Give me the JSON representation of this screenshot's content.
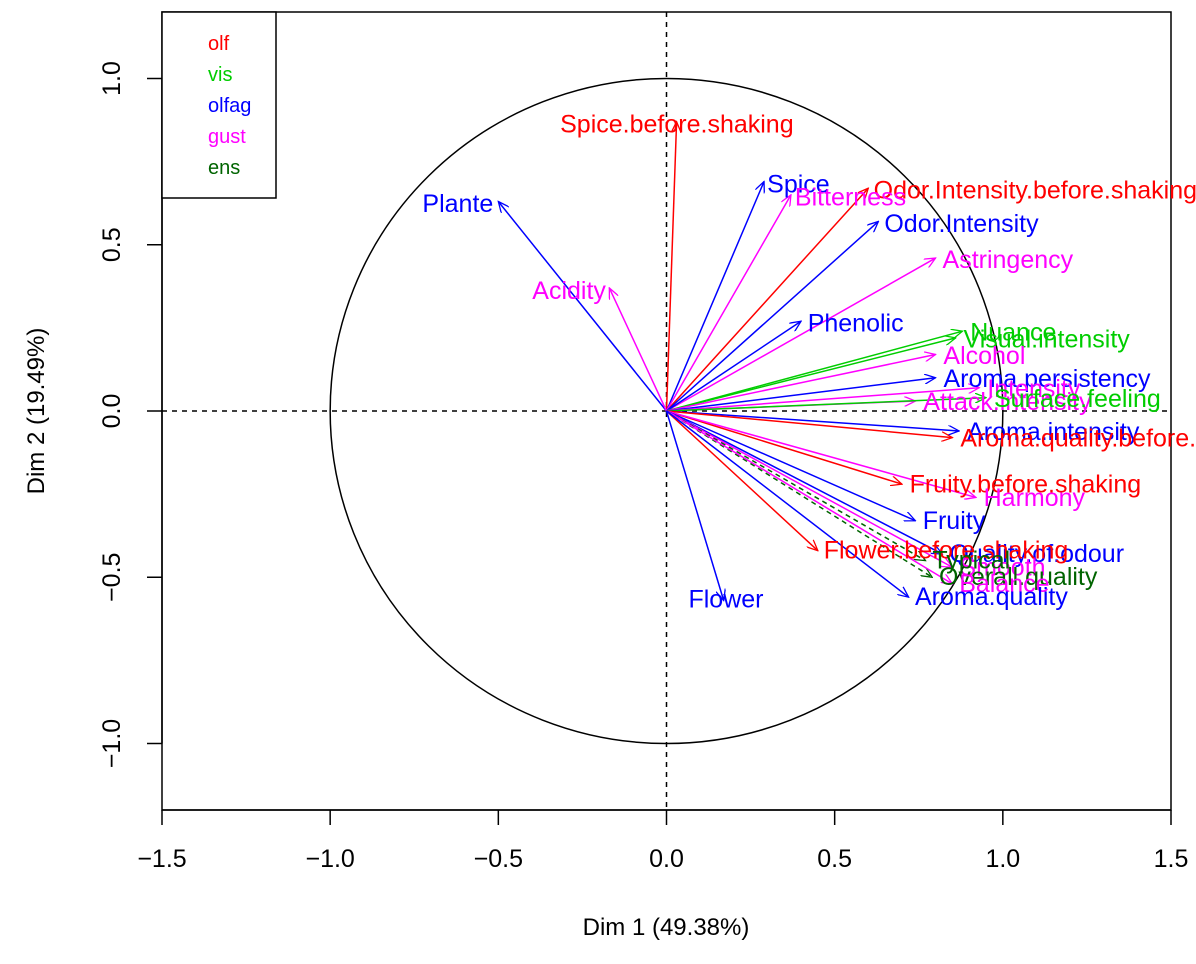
{
  "chart_data": {
    "type": "variables-factor-map",
    "xlabel": "Dim 1 (49.38%)",
    "ylabel": "Dim 2 (19.49%)",
    "xlim": [
      -1.5,
      1.5
    ],
    "ylim": [
      -1.2,
      1.2
    ],
    "x_ticks": [
      -1.5,
      -1.0,
      -0.5,
      0.0,
      0.5,
      1.0,
      1.5
    ],
    "x_tick_labels": [
      "−1.5",
      "−1.0",
      "−0.5",
      "0.0",
      "0.5",
      "1.0",
      "1.5"
    ],
    "y_ticks": [
      -1.0,
      -0.5,
      0.0,
      0.5,
      1.0
    ],
    "y_tick_labels": [
      "−1.0",
      "−0.5",
      "0.0",
      "0.5",
      "1.0"
    ],
    "legend_position": "top-left",
    "groups": [
      {
        "name": "olf",
        "color": "#ff0000"
      },
      {
        "name": "vis",
        "color": "#00cd00"
      },
      {
        "name": "olfag",
        "color": "#0000ff"
      },
      {
        "name": "gust",
        "color": "#ff00ff"
      },
      {
        "name": "ens",
        "color": "#006400"
      }
    ],
    "variables": [
      {
        "name": "Spice.before.shaking",
        "group": "olf",
        "x": 0.03,
        "y": 0.87,
        "dashed": false
      },
      {
        "name": "Odor.Intensity.before.shaking",
        "group": "olf",
        "x": 0.6,
        "y": 0.67,
        "dashed": false
      },
      {
        "name": "Spice",
        "group": "olfag",
        "x": 0.29,
        "y": 0.69,
        "dashed": false
      },
      {
        "name": "Bitterness",
        "group": "gust",
        "x": 0.37,
        "y": 0.65,
        "dashed": false
      },
      {
        "name": "Plante",
        "group": "olfag",
        "x": -0.5,
        "y": 0.63,
        "dashed": false
      },
      {
        "name": "Odor.Intensity",
        "group": "olfag",
        "x": 0.63,
        "y": 0.57,
        "dashed": false
      },
      {
        "name": "Astringency",
        "group": "gust",
        "x": 0.8,
        "y": 0.46,
        "dashed": false
      },
      {
        "name": "Acidity",
        "group": "gust",
        "x": -0.17,
        "y": 0.37,
        "dashed": false
      },
      {
        "name": "Phenolic",
        "group": "olfag",
        "x": 0.4,
        "y": 0.27,
        "dashed": false
      },
      {
        "name": "Visual.intensity",
        "group": "vis",
        "x": 0.86,
        "y": 0.22,
        "dashed": false
      },
      {
        "name": "Nuance",
        "group": "vis",
        "x": 0.88,
        "y": 0.24,
        "dashed": false
      },
      {
        "name": "Alcohol",
        "group": "gust",
        "x": 0.8,
        "y": 0.17,
        "dashed": false
      },
      {
        "name": "Aroma.persistency",
        "group": "olfag",
        "x": 0.8,
        "y": 0.1,
        "dashed": false
      },
      {
        "name": "Intensity",
        "group": "gust",
        "x": 0.93,
        "y": 0.07,
        "dashed": false
      },
      {
        "name": "Attack.intensity",
        "group": "gust",
        "x": 0.74,
        "y": 0.03,
        "dashed": false
      },
      {
        "name": "Surface.feeling",
        "group": "vis",
        "x": 0.95,
        "y": 0.04,
        "dashed": false
      },
      {
        "name": "Aroma.intensity",
        "group": "olfag",
        "x": 0.87,
        "y": -0.06,
        "dashed": false
      },
      {
        "name": "Aroma.quality.before.shaking",
        "group": "olf",
        "x": 0.85,
        "y": -0.08,
        "dashed": false
      },
      {
        "name": "Fruity.before.shaking",
        "group": "olf",
        "x": 0.7,
        "y": -0.22,
        "dashed": false
      },
      {
        "name": "Harmony",
        "group": "gust",
        "x": 0.92,
        "y": -0.26,
        "dashed": false
      },
      {
        "name": "Fruity",
        "group": "olfag",
        "x": 0.74,
        "y": -0.33,
        "dashed": false
      },
      {
        "name": "Quality.of.odour",
        "group": "olfag",
        "x": 0.82,
        "y": -0.43,
        "dashed": false
      },
      {
        "name": "Smooth",
        "group": "gust",
        "x": 0.85,
        "y": -0.47,
        "dashed": false
      },
      {
        "name": "Flower.before.shaking",
        "group": "olf",
        "x": 0.45,
        "y": -0.42,
        "dashed": false
      },
      {
        "name": "Typical",
        "group": "ens",
        "x": 0.77,
        "y": -0.45,
        "dashed": true
      },
      {
        "name": "Overall.quality",
        "group": "ens",
        "x": 0.79,
        "y": -0.5,
        "dashed": true
      },
      {
        "name": "Balance",
        "group": "gust",
        "x": 0.85,
        "y": -0.52,
        "dashed": false
      },
      {
        "name": "Aroma.quality",
        "group": "olfag",
        "x": 0.72,
        "y": -0.56,
        "dashed": false
      },
      {
        "name": "Flower",
        "group": "olfag",
        "x": 0.17,
        "y": -0.57,
        "dashed": false
      }
    ]
  }
}
